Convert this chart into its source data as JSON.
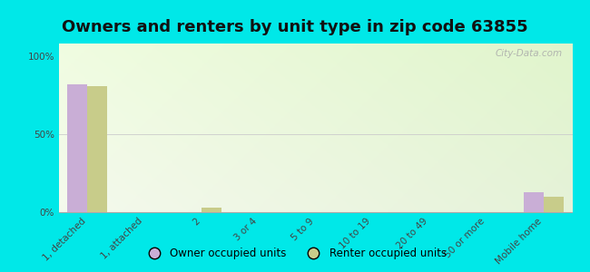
{
  "title": "Owners and renters by unit type in zip code 63855",
  "categories": [
    "1, detached",
    "1, attached",
    "2",
    "3 or 4",
    "5 to 9",
    "10 to 19",
    "20 to 49",
    "50 or more",
    "Mobile home"
  ],
  "owner_values": [
    82,
    0,
    0,
    0,
    0,
    0,
    0,
    0,
    13
  ],
  "renter_values": [
    81,
    0,
    3,
    0,
    0,
    0,
    0,
    0,
    10
  ],
  "owner_color": "#c9aed6",
  "renter_color": "#c8cc8a",
  "outer_bg": "#00e8e8",
  "ylabel_ticks": [
    0,
    50,
    100
  ],
  "ylabel_labels": [
    "0%",
    "50%",
    "100%"
  ],
  "bar_width": 0.35,
  "title_fontsize": 13,
  "tick_fontsize": 7.5,
  "legend_labels": [
    "Owner occupied units",
    "Renter occupied units"
  ],
  "watermark": "City-Data.com"
}
